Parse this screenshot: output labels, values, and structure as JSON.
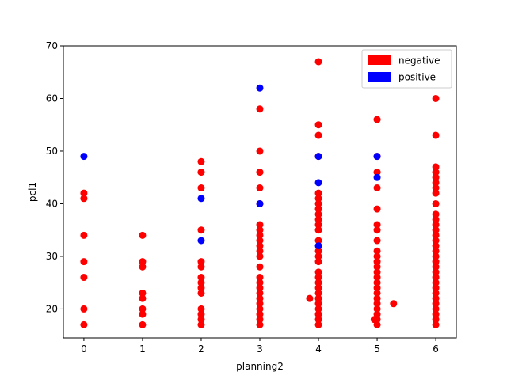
{
  "chart_data": {
    "type": "scatter",
    "title": "",
    "xlabel": "planning2",
    "ylabel": "pcl1",
    "xlim": [
      -0.35,
      6.35
    ],
    "ylim": [
      14.5,
      70
    ],
    "xticks": [
      "0",
      "1",
      "2",
      "3",
      "4",
      "5",
      "6"
    ],
    "yticks": [
      "20",
      "30",
      "40",
      "50",
      "60",
      "70"
    ],
    "grid": false,
    "legend_position": "top-right",
    "series": [
      {
        "name": "negative",
        "color": "#ff0000",
        "points": [
          [
            0,
            17
          ],
          [
            0,
            20
          ],
          [
            0,
            26
          ],
          [
            0,
            29
          ],
          [
            0,
            34
          ],
          [
            0,
            41
          ],
          [
            0,
            42
          ],
          [
            1,
            17
          ],
          [
            1,
            19
          ],
          [
            1,
            20
          ],
          [
            1,
            22
          ],
          [
            1,
            23
          ],
          [
            1,
            28
          ],
          [
            1,
            29
          ],
          [
            1,
            34
          ],
          [
            2,
            17
          ],
          [
            2,
            18
          ],
          [
            2,
            19
          ],
          [
            2,
            20
          ],
          [
            2,
            23
          ],
          [
            2,
            24
          ],
          [
            2,
            25
          ],
          [
            2,
            26
          ],
          [
            2,
            28
          ],
          [
            2,
            29
          ],
          [
            2,
            35
          ],
          [
            2,
            43
          ],
          [
            2,
            46
          ],
          [
            2,
            48
          ],
          [
            3,
            17
          ],
          [
            3,
            18
          ],
          [
            3,
            19
          ],
          [
            3,
            20
          ],
          [
            3,
            21
          ],
          [
            3,
            22
          ],
          [
            3,
            23
          ],
          [
            3,
            24
          ],
          [
            3,
            25
          ],
          [
            3,
            26
          ],
          [
            3,
            28
          ],
          [
            3,
            30
          ],
          [
            3,
            31
          ],
          [
            3,
            32
          ],
          [
            3,
            33
          ],
          [
            3,
            34
          ],
          [
            3,
            35
          ],
          [
            3,
            36
          ],
          [
            3,
            40
          ],
          [
            3,
            43
          ],
          [
            3,
            46
          ],
          [
            3,
            50
          ],
          [
            3,
            58
          ],
          [
            3.85,
            22
          ],
          [
            4,
            17
          ],
          [
            4,
            18
          ],
          [
            4,
            19
          ],
          [
            4,
            20
          ],
          [
            4,
            21
          ],
          [
            4,
            22
          ],
          [
            4,
            23
          ],
          [
            4,
            24
          ],
          [
            4,
            25
          ],
          [
            4,
            26
          ],
          [
            4,
            27
          ],
          [
            4,
            29
          ],
          [
            4,
            30
          ],
          [
            4,
            31
          ],
          [
            4,
            33
          ],
          [
            4,
            35
          ],
          [
            4,
            36
          ],
          [
            4,
            37
          ],
          [
            4,
            38
          ],
          [
            4,
            39
          ],
          [
            4,
            40
          ],
          [
            4,
            41
          ],
          [
            4,
            42
          ],
          [
            4,
            49
          ],
          [
            4,
            53
          ],
          [
            4,
            55
          ],
          [
            4,
            67
          ],
          [
            4.95,
            18
          ],
          [
            5,
            17
          ],
          [
            5,
            18
          ],
          [
            5,
            19
          ],
          [
            5,
            20
          ],
          [
            5,
            21
          ],
          [
            5,
            22
          ],
          [
            5,
            23
          ],
          [
            5,
            24
          ],
          [
            5,
            25
          ],
          [
            5,
            26
          ],
          [
            5,
            27
          ],
          [
            5,
            28
          ],
          [
            5,
            29
          ],
          [
            5,
            30
          ],
          [
            5,
            31
          ],
          [
            5,
            33
          ],
          [
            5,
            35
          ],
          [
            5,
            36
          ],
          [
            5,
            39
          ],
          [
            5,
            43
          ],
          [
            5,
            46
          ],
          [
            5,
            49
          ],
          [
            5,
            56
          ],
          [
            5.28,
            21
          ],
          [
            6,
            17
          ],
          [
            6,
            18
          ],
          [
            6,
            19
          ],
          [
            6,
            20
          ],
          [
            6,
            21
          ],
          [
            6,
            22
          ],
          [
            6,
            23
          ],
          [
            6,
            24
          ],
          [
            6,
            25
          ],
          [
            6,
            26
          ],
          [
            6,
            27
          ],
          [
            6,
            28
          ],
          [
            6,
            29
          ],
          [
            6,
            30
          ],
          [
            6,
            31
          ],
          [
            6,
            32
          ],
          [
            6,
            33
          ],
          [
            6,
            34
          ],
          [
            6,
            35
          ],
          [
            6,
            36
          ],
          [
            6,
            37
          ],
          [
            6,
            38
          ],
          [
            6,
            40
          ],
          [
            6,
            42
          ],
          [
            6,
            43
          ],
          [
            6,
            44
          ],
          [
            6,
            45
          ],
          [
            6,
            46
          ],
          [
            6,
            47
          ],
          [
            6,
            53
          ],
          [
            6,
            60
          ]
        ]
      },
      {
        "name": "positive",
        "color": "#0000ff",
        "points": [
          [
            0,
            49
          ],
          [
            2,
            33
          ],
          [
            2,
            41
          ],
          [
            3,
            40
          ],
          [
            3,
            62
          ],
          [
            4,
            32
          ],
          [
            4,
            44
          ],
          [
            4,
            49
          ],
          [
            5,
            45
          ],
          [
            5,
            49
          ]
        ]
      }
    ]
  }
}
